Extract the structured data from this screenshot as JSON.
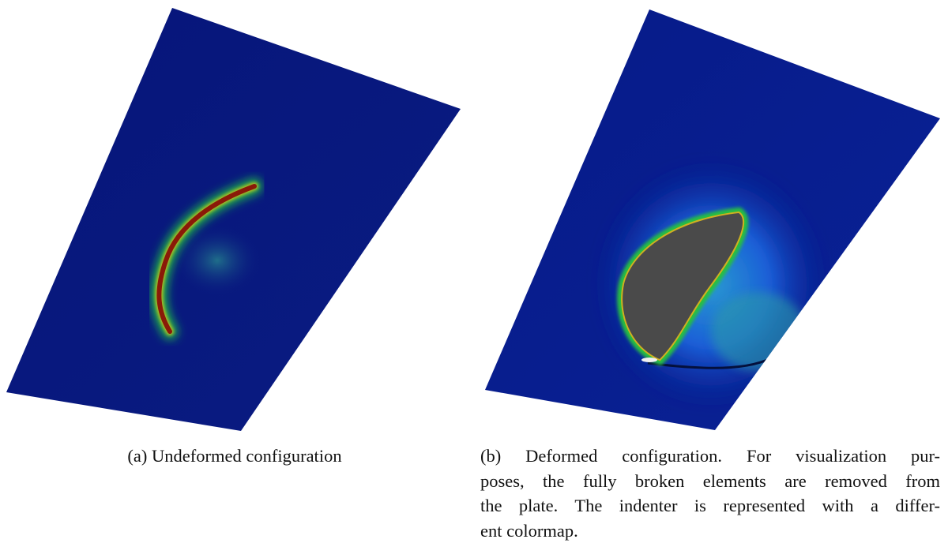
{
  "figure": {
    "subfigures": [
      {
        "caption_lines": [
          "(a) Undeformed configuration"
        ]
      },
      {
        "caption_lines": [
          "(b) Deformed configuration. For visualization pur-",
          "poses, the fully broken elements are removed from",
          "the plate. The indenter is represented with a differ-",
          "ent colormap."
        ]
      }
    ]
  }
}
